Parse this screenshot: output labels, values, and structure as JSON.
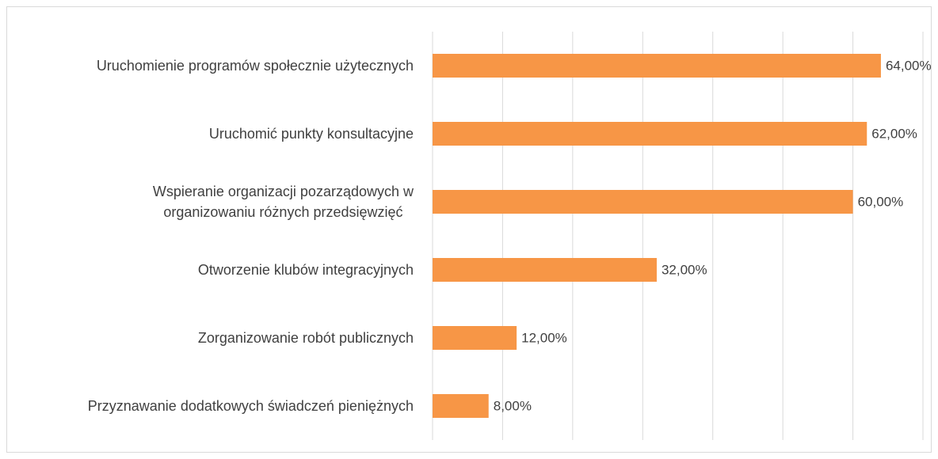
{
  "chart_data": {
    "type": "bar",
    "orientation": "horizontal",
    "categories": [
      "Uruchomienie programów społecznie użytecznych",
      "Uruchomić punkty konsultacyjne",
      "Wspieranie organizacji pozarządowych w\norganizowaniu różnych przedsięwzięć",
      "Otworzenie klubów integracyjnych",
      "Zorganizowanie robót publicznych",
      "Przyznawanie dodatkowych świadczeń pieniężnych"
    ],
    "values": [
      64,
      62,
      60,
      32,
      12,
      8
    ],
    "value_labels": [
      "64,00%",
      "62,00%",
      "60,00%",
      "32,00%",
      "12,00%",
      "8,00%"
    ],
    "color": "#f79646",
    "xlim": [
      0,
      70
    ],
    "xticks": [
      0,
      10,
      20,
      30,
      40,
      50,
      60,
      70
    ],
    "grid": true
  }
}
